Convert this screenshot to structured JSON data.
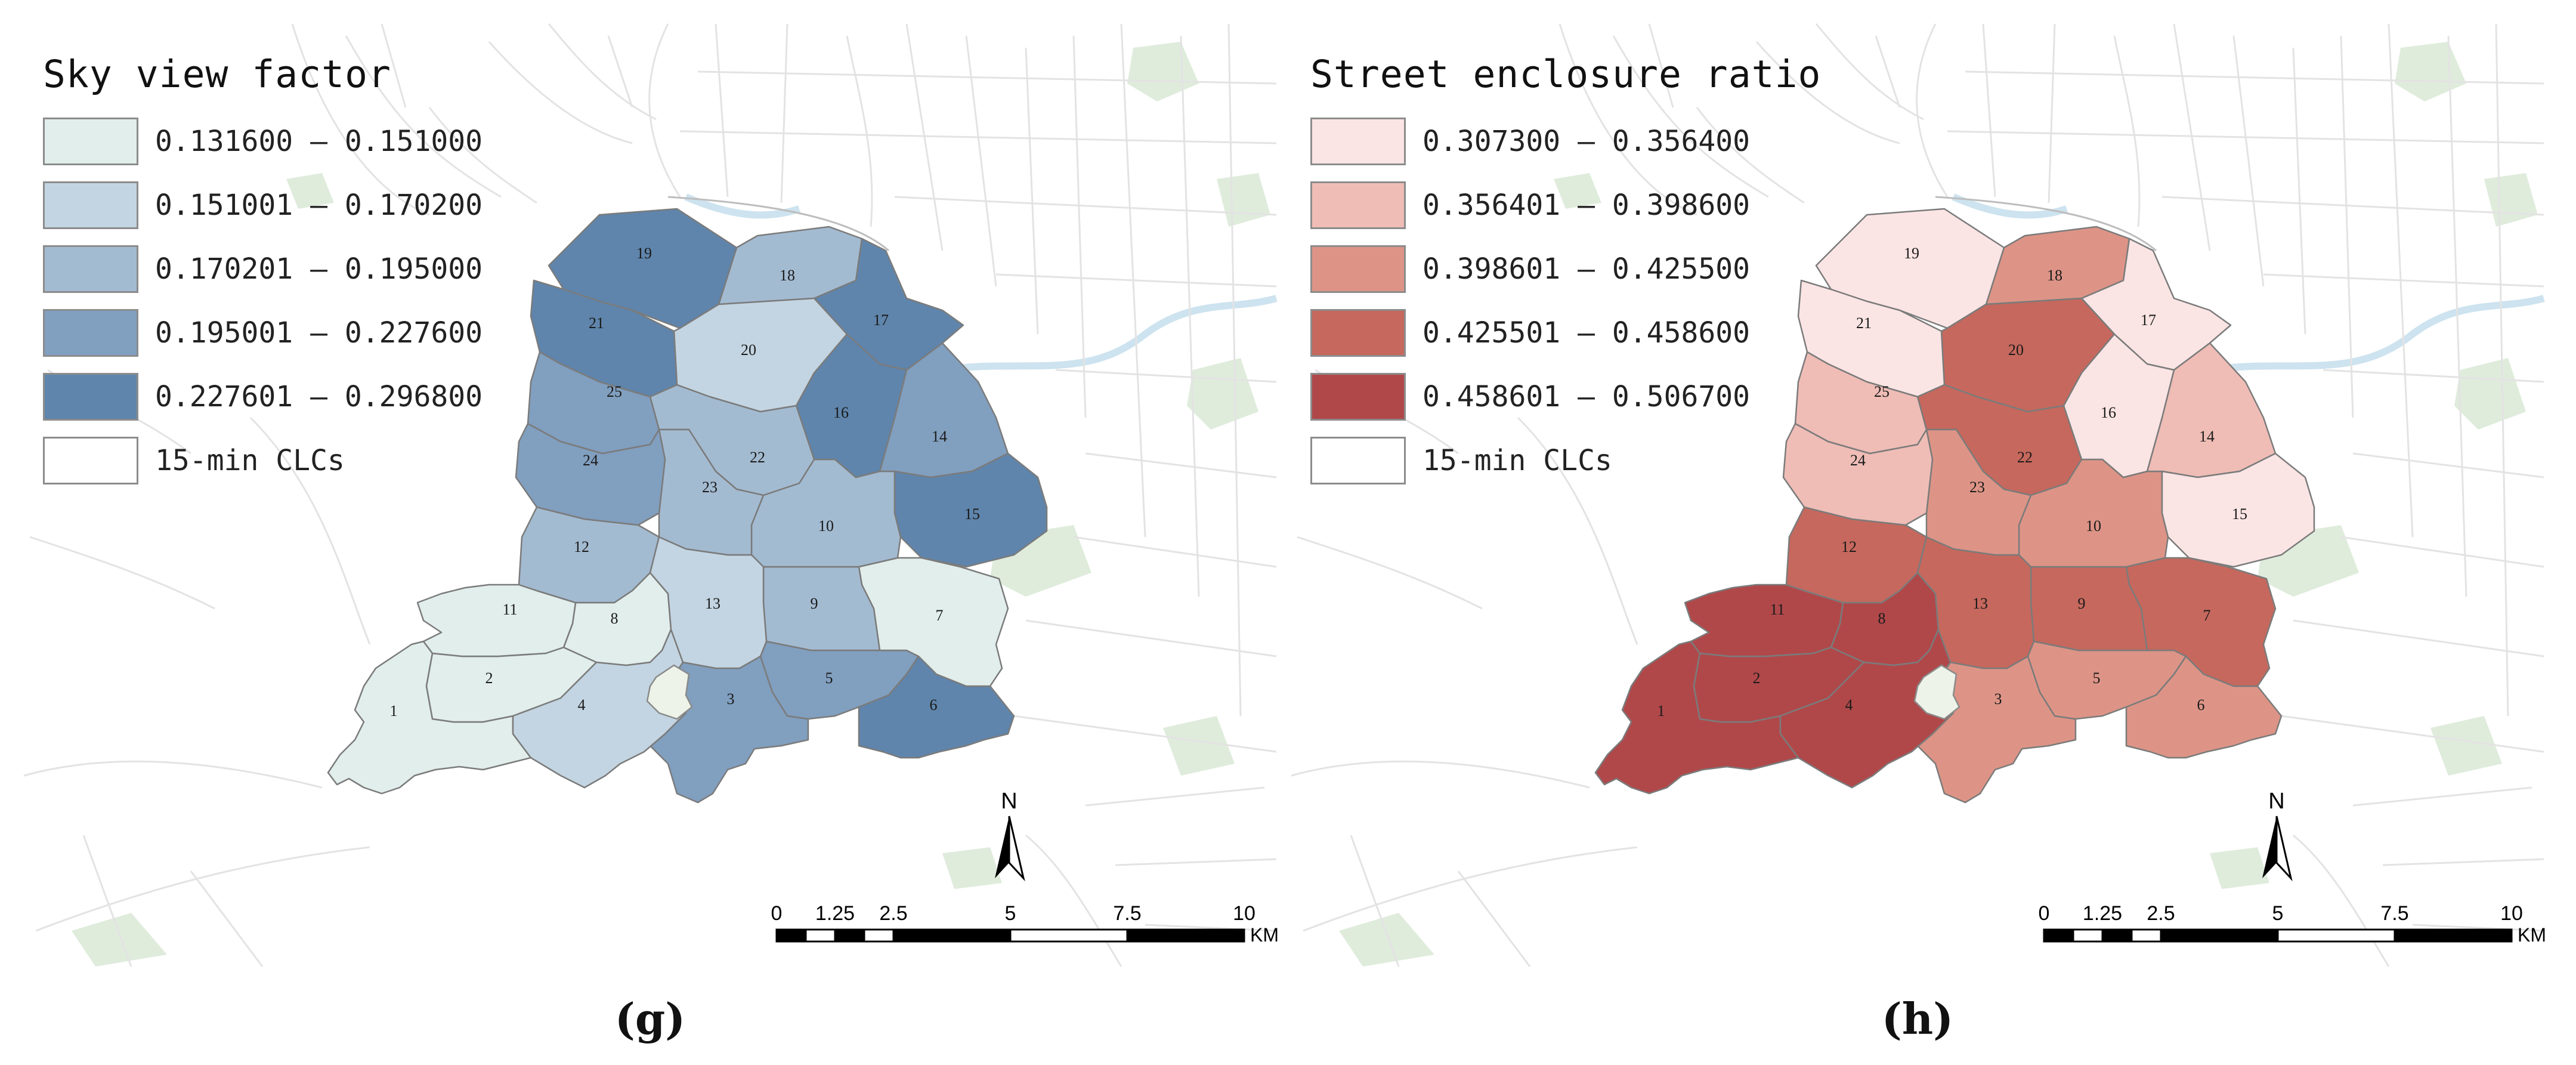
{
  "panels": [
    {
      "id": "g",
      "title": "Sky view factor",
      "caption": "(g)",
      "legend": [
        {
          "label": "0.131600 — 0.151000",
          "color": "#e1eeeb"
        },
        {
          "label": "0.151001 — 0.170200",
          "color": "#c3d5e2"
        },
        {
          "label": "0.170201 — 0.195000",
          "color": "#a3bbd1"
        },
        {
          "label": "0.195001 — 0.227600",
          "color": "#819fbf"
        },
        {
          "label": "0.227601 — 0.296800",
          "color": "#5f85ac"
        },
        {
          "label": "15-min CLCs",
          "color": "#ffffff"
        }
      ],
      "district_classes": {
        "1": 0,
        "2": 0,
        "3": 3,
        "4": 1,
        "5": 3,
        "6": 4,
        "7": 0,
        "8": 0,
        "9": 2,
        "10": 2,
        "11": 0,
        "12": 2,
        "13": 1,
        "14": 3,
        "15": 4,
        "16": 4,
        "17": 4,
        "18": 2,
        "19": 4,
        "20": 1,
        "21": 4,
        "22": 2,
        "23": 2,
        "24": 3,
        "25": 3
      }
    },
    {
      "id": "h",
      "title": "Street enclosure ratio",
      "caption": "(h)",
      "legend": [
        {
          "label": "0.307300 — 0.356400",
          "color": "#fbe5e4"
        },
        {
          "label": "0.356401 — 0.398600",
          "color": "#efbdb6"
        },
        {
          "label": "0.398601 — 0.425500",
          "color": "#dd9486"
        },
        {
          "label": "0.425501 — 0.458600",
          "color": "#c6685d"
        },
        {
          "label": "0.458601 — 0.506700",
          "color": "#b0484a"
        },
        {
          "label": "15-min CLCs",
          "color": "#ffffff"
        }
      ],
      "district_classes": {
        "1": 4,
        "2": 4,
        "3": 2,
        "4": 4,
        "5": 2,
        "6": 2,
        "7": 3,
        "8": 4,
        "9": 3,
        "10": 2,
        "11": 4,
        "12": 3,
        "13": 3,
        "14": 1,
        "15": 0,
        "16": 0,
        "17": 0,
        "18": 2,
        "19": 0,
        "20": 3,
        "21": 0,
        "22": 3,
        "23": 2,
        "24": 1,
        "25": 1
      }
    }
  ],
  "north_label": "N",
  "scale_bar": {
    "ticks": [
      "0",
      "1.25",
      "2.5",
      "5",
      "7.5",
      "10"
    ],
    "unit": "KM"
  },
  "colors": {
    "outline": "#666666",
    "basemap_road": "#e3e3e3",
    "green": "#dfecdc",
    "water": "#cde3ef"
  }
}
